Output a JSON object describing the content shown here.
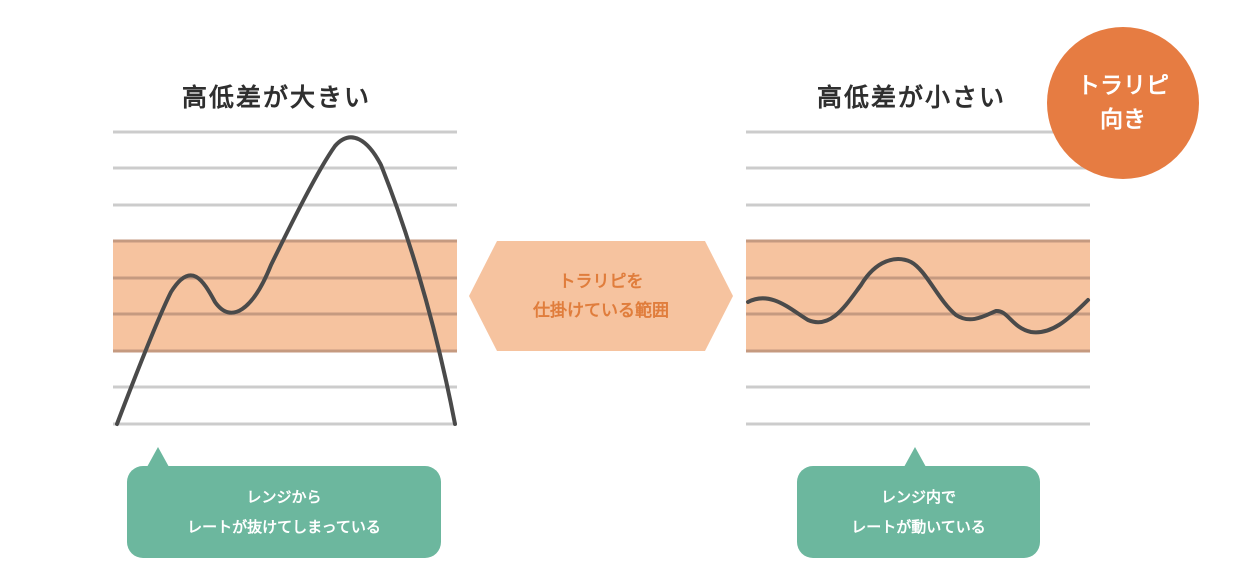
{
  "left_panel": {
    "title": "高低差が大きい",
    "bubble_line1": "レンジから",
    "bubble_line2": "レートが抜けてしまっている"
  },
  "right_panel": {
    "title": "高低差が小さい",
    "bubble_line1": "レンジ内で",
    "bubble_line2": "レートが動いている"
  },
  "center_label": {
    "line1": "トラリピを",
    "line2": "仕掛けている範囲"
  },
  "badge": {
    "line1": "トラリピ",
    "line2": "向き"
  },
  "colors": {
    "range_band": "#f6c39f",
    "grid_line": "#cccccc",
    "grid_line_in_band": "#c59a80",
    "price_line": "#4a4a4a",
    "badge": "#e67c42",
    "bubble": "#6cb79e",
    "center_text": "#e07d3c"
  }
}
